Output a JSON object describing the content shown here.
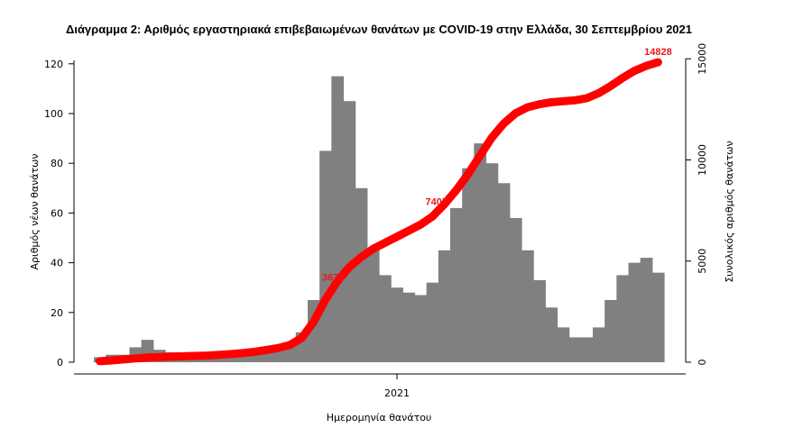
{
  "chart_data": {
    "type": "bar+line",
    "title": "Διάγραμμα 2: Αριθμός εργαστηριακά επιβεβαιωμένων θανάτων με COVID-19 στην Ελλάδα, 30 Σεπτεμβρίου 2021",
    "xlabel": "Ημερομηνία θανάτου",
    "ylabel_left": "Αριθμός νέων θανάτων",
    "ylabel_right": "Συνολικός αριθμός θανάτων",
    "x_tick_label": "2021",
    "ylim_left": [
      0,
      125
    ],
    "yticks_left": [
      0,
      20,
      40,
      60,
      80,
      100,
      120
    ],
    "ylim_right": [
      0,
      15500
    ],
    "yticks_right": [
      0,
      5000,
      10000,
      15000
    ],
    "bar_color": "#808080",
    "line_color": "#ff0000",
    "annotations": [
      {
        "label": "3673",
        "value": 3673
      },
      {
        "label": "7407",
        "value": 7407
      },
      {
        "label": "14828",
        "value": 14828
      }
    ],
    "daily_deaths_by_week": [
      2,
      3,
      3,
      6,
      9,
      5,
      4,
      3,
      2,
      2,
      2,
      3,
      4,
      3,
      4,
      5,
      8,
      12,
      25,
      85,
      115,
      105,
      70,
      46,
      35,
      30,
      28,
      27,
      32,
      45,
      62,
      78,
      88,
      80,
      72,
      58,
      45,
      33,
      22,
      14,
      10,
      10,
      14,
      25,
      35,
      40,
      42,
      36
    ],
    "cumulative_deaths_by_week": [
      50,
      90,
      140,
      185,
      230,
      260,
      280,
      295,
      310,
      330,
      360,
      400,
      450,
      510,
      600,
      700,
      850,
      1200,
      2000,
      3100,
      4000,
      4700,
      5200,
      5600,
      5900,
      6200,
      6500,
      6800,
      7200,
      7800,
      8500,
      9300,
      10200,
      11100,
      11800,
      12300,
      12600,
      12750,
      12850,
      12900,
      12950,
      13050,
      13300,
      13650,
      14050,
      14400,
      14650,
      14828
    ]
  }
}
